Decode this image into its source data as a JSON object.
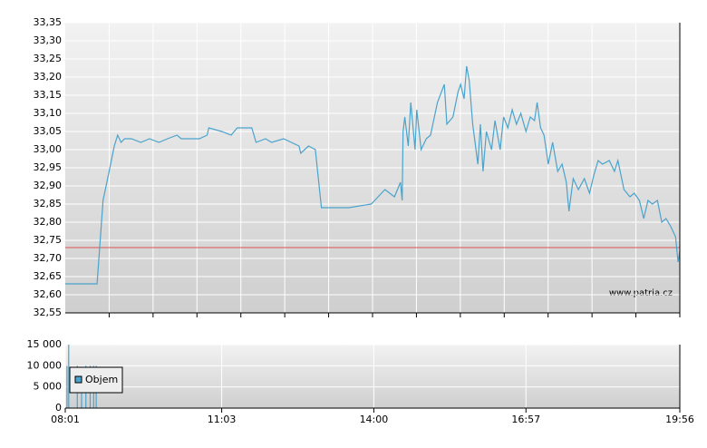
{
  "chart_data": [
    {
      "type": "line",
      "color": "#4aa3cc",
      "x": [
        "08:01",
        "08:38",
        "08:45",
        "08:52",
        "08:58",
        "09:02",
        "09:06",
        "09:10",
        "09:18",
        "09:29",
        "09:39",
        "09:50",
        "10:00",
        "10:11",
        "10:16",
        "10:27",
        "10:37",
        "10:46",
        "10:48",
        "11:03",
        "11:14",
        "11:21",
        "11:38",
        "11:43",
        "11:54",
        "12:01",
        "12:15",
        "12:33",
        "12:35",
        "12:44",
        "12:52",
        "12:59",
        "13:31",
        "13:57",
        "14:13",
        "14:24",
        "14:31",
        "14:33",
        "14:34",
        "14:36",
        "14:40",
        "14:43",
        "14:48",
        "14:50",
        "14:55",
        "15:01",
        "15:06",
        "15:14",
        "15:22",
        "15:25",
        "15:32",
        "15:38",
        "15:41",
        "15:45",
        "15:48",
        "15:51",
        "15:55",
        "16:01",
        "16:04",
        "16:07",
        "16:11",
        "16:17",
        "16:21",
        "16:27",
        "16:31",
        "16:36",
        "16:41",
        "16:46",
        "16:51",
        "16:57",
        "17:02",
        "17:07",
        "17:10",
        "17:14",
        "17:18",
        "17:23",
        "17:28",
        "17:34",
        "17:39",
        "17:44",
        "17:47",
        "17:52",
        "17:58",
        "18:05",
        "18:11",
        "18:16",
        "18:21",
        "18:26",
        "18:34",
        "18:40",
        "18:44",
        "18:51",
        "18:58",
        "19:03",
        "19:09",
        "19:14",
        "19:19",
        "19:24",
        "19:30",
        "19:35",
        "19:40",
        "19:45",
        "19:51",
        "19:54",
        "19:56"
      ],
      "values": [
        32.63,
        32.63,
        32.86,
        32.94,
        33.01,
        33.04,
        33.02,
        33.03,
        33.03,
        33.02,
        33.03,
        33.02,
        33.03,
        33.04,
        33.03,
        33.03,
        33.03,
        33.04,
        33.06,
        33.05,
        33.04,
        33.06,
        33.06,
        33.02,
        33.03,
        33.02,
        33.03,
        33.01,
        32.99,
        33.01,
        33.0,
        32.84,
        32.84,
        32.85,
        32.89,
        32.87,
        32.91,
        32.86,
        33.05,
        33.09,
        33.01,
        33.13,
        33.0,
        33.11,
        33.0,
        33.03,
        33.04,
        33.13,
        33.18,
        33.07,
        33.09,
        33.16,
        33.18,
        33.14,
        33.23,
        33.19,
        33.07,
        32.96,
        33.07,
        32.94,
        33.05,
        33.0,
        33.08,
        33.0,
        33.09,
        33.06,
        33.11,
        33.07,
        33.1,
        33.05,
        33.09,
        33.08,
        33.13,
        33.06,
        33.04,
        32.96,
        33.02,
        32.94,
        32.96,
        32.91,
        32.83,
        32.92,
        32.89,
        32.92,
        32.88,
        32.93,
        32.97,
        32.96,
        32.97,
        32.94,
        32.97,
        32.89,
        32.87,
        32.88,
        32.86,
        32.81,
        32.86,
        32.85,
        32.86,
        32.8,
        32.81,
        32.79,
        32.76,
        32.69,
        32.72
      ],
      "xlim": [
        "08:01",
        "19:56"
      ],
      "ylim": [
        32.55,
        33.35
      ],
      "yticks": [
        {
          "value": 32.55,
          "label": "32,55"
        },
        {
          "value": 32.6,
          "label": "32,60"
        },
        {
          "value": 32.65,
          "label": "32,65"
        },
        {
          "value": 32.7,
          "label": "32,70"
        },
        {
          "value": 32.75,
          "label": "32,75"
        },
        {
          "value": 32.8,
          "label": "32,80"
        },
        {
          "value": 32.85,
          "label": "32,85"
        },
        {
          "value": 32.9,
          "label": "32,90"
        },
        {
          "value": 32.95,
          "label": "32,95"
        },
        {
          "value": 33.0,
          "label": "33,00"
        },
        {
          "value": 33.05,
          "label": "33,05"
        },
        {
          "value": 33.1,
          "label": "33,10"
        },
        {
          "value": 33.15,
          "label": "33,15"
        },
        {
          "value": 33.2,
          "label": "33,20"
        },
        {
          "value": 33.25,
          "label": "33,25"
        },
        {
          "value": 33.3,
          "label": "33,30"
        },
        {
          "value": 33.35,
          "label": "33,35"
        }
      ],
      "reference_line": {
        "value": 32.73,
        "color": "#d9534f"
      },
      "annotation": "www.patria.cz",
      "grid": true
    },
    {
      "type": "bar",
      "x": [
        "08:03",
        "08:05",
        "08:15",
        "08:20",
        "08:25",
        "08:30",
        "08:34",
        "08:37"
      ],
      "series": [
        {
          "name": "Objem",
          "color": "#4aa3cc",
          "values": [
            10000,
            15000,
            10000,
            5000,
            10000,
            10000,
            10000,
            10000
          ]
        }
      ],
      "xlim": [
        "08:01",
        "19:56"
      ],
      "xticks": [
        "08:01",
        "11:03",
        "14:00",
        "16:57",
        "19:56"
      ],
      "ylim": [
        0,
        15000
      ],
      "yticks": [
        {
          "value": 0,
          "label": "0"
        },
        {
          "value": 5000,
          "label": "5 000"
        },
        {
          "value": 10000,
          "label": "10 000"
        },
        {
          "value": 15000,
          "label": "15 000"
        }
      ],
      "grid": true
    }
  ]
}
